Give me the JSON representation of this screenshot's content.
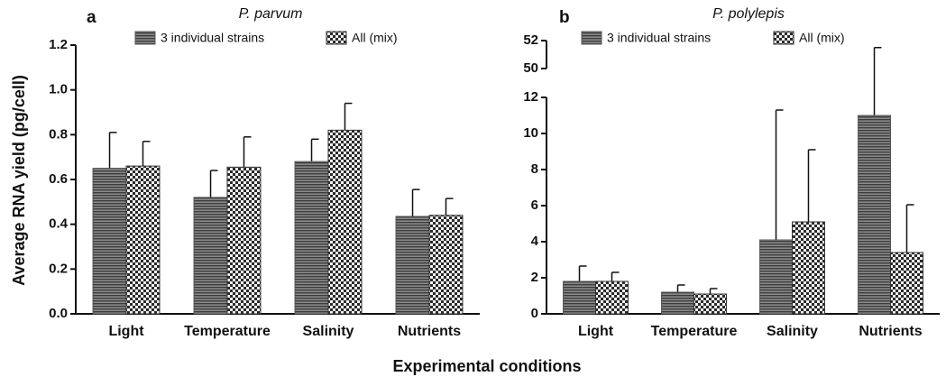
{
  "shared_axes": {
    "ylabel": "Average RNA yield (pg/cell)",
    "xlabel": "Experimental conditions"
  },
  "chart_data": [
    {
      "type": "bar",
      "panel": "a",
      "title": "P. parvum",
      "categories": [
        "Light",
        "Temperature",
        "Salinity",
        "Nutrients"
      ],
      "series": [
        {
          "name": "3 individual strains",
          "color": "#555555",
          "pattern": "stripes",
          "values": [
            0.65,
            0.52,
            0.68,
            0.435
          ],
          "errors": [
            0.16,
            0.12,
            0.1,
            0.12
          ]
        },
        {
          "name": "All (mix)",
          "color": "#333333",
          "pattern": "checker",
          "values": [
            0.66,
            0.655,
            0.82,
            0.44
          ],
          "errors": [
            0.11,
            0.135,
            0.12,
            0.075
          ]
        }
      ],
      "ylim": [
        0,
        1.2
      ],
      "yticks": [
        {
          "value": 0,
          "label": "0.0"
        },
        0.2,
        0.4,
        0.6,
        0.8,
        {
          "value": 1,
          "label": "1.0"
        },
        1.2
      ]
    },
    {
      "type": "bar",
      "panel": "b",
      "title": "P. polylepis",
      "categories": [
        "Light",
        "Temperature",
        "Salinity",
        "Nutrients"
      ],
      "series": [
        {
          "name": "3 individual strains",
          "color": "#555555",
          "pattern": "stripes",
          "values": [
            1.8,
            1.2,
            4.1,
            11.0
          ],
          "errors": [
            0.85,
            0.4,
            7.2,
            40.5
          ]
        },
        {
          "name": "All (mix)",
          "color": "#333333",
          "pattern": "checker",
          "values": [
            1.8,
            1.1,
            5.1,
            3.4
          ],
          "errors": [
            0.5,
            0.3,
            4.0,
            2.65
          ]
        }
      ],
      "ylim": [
        0,
        52
      ],
      "ybreak": [
        12,
        50
      ],
      "yticks": [
        0,
        2,
        4,
        6,
        8,
        10,
        12,
        50,
        52
      ]
    }
  ]
}
